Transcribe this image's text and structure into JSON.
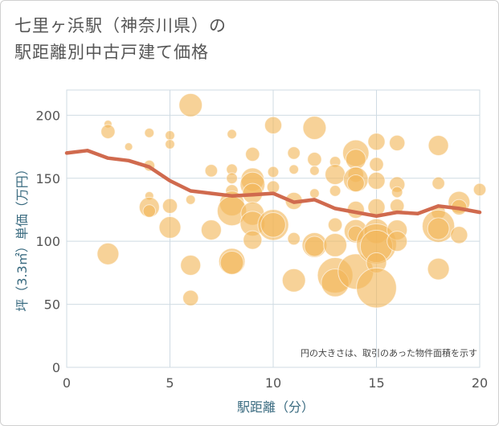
{
  "title_line1": "七里ヶ浜駅（神奈川県）の",
  "title_line2": "駅距離別中古戸建て価格",
  "note": "円の大きさは、取引のあった物件面積を示す",
  "chart_data": {
    "type": "scatter",
    "xlabel": "駅距離（分）",
    "ylabel": "坪（3.3㎡）単価（万円）",
    "xlim": [
      0,
      20
    ],
    "ylim": [
      0,
      220
    ],
    "xticks": [
      0,
      5,
      10,
      15,
      20
    ],
    "yticks": [
      0,
      50,
      100,
      150,
      200
    ],
    "x_tick_labels": [
      "0",
      "5",
      "10",
      "15",
      "20"
    ],
    "y_tick_labels": [
      "0",
      "50",
      "100",
      "150",
      "200"
    ],
    "grid": true,
    "colors": {
      "bubble": "#f2b658",
      "trend": "#d06a4e",
      "grid": "#cfdbe3"
    },
    "trend": {
      "x": [
        0,
        1,
        2,
        3,
        4,
        5,
        6,
        7,
        8,
        9,
        10,
        11,
        12,
        13,
        14,
        15,
        16,
        17,
        18,
        19,
        20
      ],
      "y": [
        170,
        172,
        166,
        164,
        159,
        148,
        140,
        138,
        136,
        137,
        138,
        131,
        133,
        126,
        123,
        120,
        123,
        122,
        128,
        126,
        123
      ]
    },
    "points": [
      {
        "x": 2,
        "y": 193,
        "s": 0.2
      },
      {
        "x": 2,
        "y": 187,
        "s": 0.6
      },
      {
        "x": 2,
        "y": 90,
        "s": 1.1
      },
      {
        "x": 3,
        "y": 175,
        "s": 0.2
      },
      {
        "x": 4,
        "y": 186,
        "s": 0.3
      },
      {
        "x": 4,
        "y": 160,
        "s": 0.4
      },
      {
        "x": 4,
        "y": 136,
        "s": 0.25
      },
      {
        "x": 4,
        "y": 127,
        "s": 1.0
      },
      {
        "x": 4,
        "y": 124,
        "s": 0.5
      },
      {
        "x": 5,
        "y": 184,
        "s": 0.3
      },
      {
        "x": 5,
        "y": 177,
        "s": 0.3
      },
      {
        "x": 5,
        "y": 128,
        "s": 0.65
      },
      {
        "x": 5,
        "y": 111,
        "s": 1.1
      },
      {
        "x": 6,
        "y": 208,
        "s": 1.2
      },
      {
        "x": 6,
        "y": 133,
        "s": 0.3
      },
      {
        "x": 6,
        "y": 81,
        "s": 1.0
      },
      {
        "x": 6,
        "y": 55,
        "s": 0.7
      },
      {
        "x": 7,
        "y": 156,
        "s": 0.5
      },
      {
        "x": 7,
        "y": 109,
        "s": 1.0
      },
      {
        "x": 8,
        "y": 185,
        "s": 0.3
      },
      {
        "x": 8,
        "y": 157,
        "s": 0.4
      },
      {
        "x": 8,
        "y": 150,
        "s": 0.4
      },
      {
        "x": 8,
        "y": 140,
        "s": 0.5
      },
      {
        "x": 8,
        "y": 130,
        "s": 1.3
      },
      {
        "x": 8,
        "y": 124,
        "s": 1.6
      },
      {
        "x": 8,
        "y": 84,
        "s": 1.4
      },
      {
        "x": 8,
        "y": 83,
        "s": 1.2
      },
      {
        "x": 9,
        "y": 169,
        "s": 0.6
      },
      {
        "x": 9,
        "y": 149,
        "s": 1.2
      },
      {
        "x": 9,
        "y": 145,
        "s": 1.3
      },
      {
        "x": 9,
        "y": 138,
        "s": 1.0
      },
      {
        "x": 9,
        "y": 122,
        "s": 1.2
      },
      {
        "x": 9,
        "y": 114,
        "s": 1.3
      },
      {
        "x": 9,
        "y": 101,
        "s": 0.9
      },
      {
        "x": 10,
        "y": 192,
        "s": 0.8
      },
      {
        "x": 10,
        "y": 155,
        "s": 0.4
      },
      {
        "x": 10,
        "y": 143,
        "s": 0.5
      },
      {
        "x": 10,
        "y": 113,
        "s": 1.7
      },
      {
        "x": 10,
        "y": 113,
        "s": 1.3
      },
      {
        "x": 11,
        "y": 170,
        "s": 0.5
      },
      {
        "x": 11,
        "y": 157,
        "s": 0.3
      },
      {
        "x": 11,
        "y": 132,
        "s": 0.8
      },
      {
        "x": 11,
        "y": 102,
        "s": 0.5
      },
      {
        "x": 11,
        "y": 69,
        "s": 1.2
      },
      {
        "x": 12,
        "y": 190,
        "s": 1.2
      },
      {
        "x": 12,
        "y": 165,
        "s": 0.6
      },
      {
        "x": 12,
        "y": 156,
        "s": 0.3
      },
      {
        "x": 12,
        "y": 138,
        "s": 0.3
      },
      {
        "x": 12,
        "y": 97,
        "s": 1.3
      },
      {
        "x": 12,
        "y": 96,
        "s": 1.0
      },
      {
        "x": 13,
        "y": 163,
        "s": 0.4
      },
      {
        "x": 13,
        "y": 153,
        "s": 1.0
      },
      {
        "x": 13,
        "y": 140,
        "s": 0.4
      },
      {
        "x": 13,
        "y": 113,
        "s": 0.6
      },
      {
        "x": 13,
        "y": 97,
        "s": 1.2
      },
      {
        "x": 13,
        "y": 73,
        "s": 2.0
      },
      {
        "x": 13,
        "y": 67,
        "s": 1.5
      },
      {
        "x": 14,
        "y": 170,
        "s": 1.4
      },
      {
        "x": 14,
        "y": 165,
        "s": 1.0
      },
      {
        "x": 14,
        "y": 153,
        "s": 0.7
      },
      {
        "x": 14,
        "y": 149,
        "s": 1.3
      },
      {
        "x": 14,
        "y": 146,
        "s": 0.8
      },
      {
        "x": 14,
        "y": 125,
        "s": 0.8
      },
      {
        "x": 14,
        "y": 108,
        "s": 1.2
      },
      {
        "x": 14,
        "y": 106,
        "s": 0.7
      },
      {
        "x": 14,
        "y": 76,
        "s": 2.0
      },
      {
        "x": 15,
        "y": 179,
        "s": 0.8
      },
      {
        "x": 15,
        "y": 161,
        "s": 0.6
      },
      {
        "x": 15,
        "y": 148,
        "s": 0.8
      },
      {
        "x": 15,
        "y": 127,
        "s": 0.8
      },
      {
        "x": 15,
        "y": 108,
        "s": 1.3
      },
      {
        "x": 15,
        "y": 98,
        "s": 2.3
      },
      {
        "x": 15,
        "y": 96,
        "s": 1.8
      },
      {
        "x": 15,
        "y": 83,
        "s": 1.0
      },
      {
        "x": 15,
        "y": 63,
        "s": 2.3
      },
      {
        "x": 16,
        "y": 178,
        "s": 0.7
      },
      {
        "x": 16,
        "y": 145,
        "s": 0.7
      },
      {
        "x": 16,
        "y": 139,
        "s": 0.4
      },
      {
        "x": 16,
        "y": 128,
        "s": 0.6
      },
      {
        "x": 16,
        "y": 109,
        "s": 1.0
      },
      {
        "x": 16,
        "y": 100,
        "s": 1.0
      },
      {
        "x": 18,
        "y": 176,
        "s": 1.0
      },
      {
        "x": 18,
        "y": 146,
        "s": 0.5
      },
      {
        "x": 18,
        "y": 123,
        "s": 0.6
      },
      {
        "x": 18,
        "y": 112,
        "s": 1.8
      },
      {
        "x": 18,
        "y": 110,
        "s": 1.1
      },
      {
        "x": 18,
        "y": 78,
        "s": 1.1
      },
      {
        "x": 19,
        "y": 131,
        "s": 1.1
      },
      {
        "x": 19,
        "y": 127,
        "s": 0.7
      },
      {
        "x": 19,
        "y": 105,
        "s": 0.8
      },
      {
        "x": 20,
        "y": 141,
        "s": 0.5
      }
    ]
  }
}
